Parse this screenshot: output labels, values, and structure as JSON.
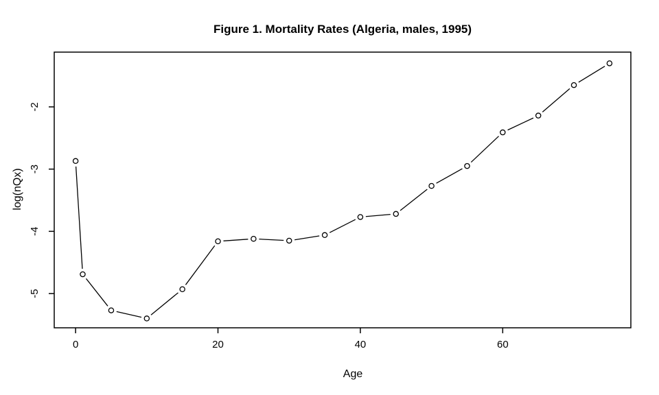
{
  "figure": {
    "background": "#ffffff",
    "foreground": "#000000"
  },
  "chart_data": {
    "type": "line",
    "title": "Figure 1. Mortality Rates (Algeria, males, 1995)",
    "xlabel": "Age",
    "ylabel": "log(nQx)",
    "x": [
      0,
      1,
      5,
      10,
      15,
      20,
      25,
      30,
      35,
      40,
      45,
      50,
      55,
      60,
      65,
      70,
      75
    ],
    "y": [
      -2.87,
      -4.69,
      -5.27,
      -5.4,
      -4.93,
      -4.16,
      -4.12,
      -4.15,
      -4.06,
      -3.77,
      -3.72,
      -3.27,
      -2.95,
      -2.41,
      -2.14,
      -1.65,
      -1.3
    ],
    "xlim": [
      -3,
      78
    ],
    "ylim": [
      -5.55,
      -1.12
    ],
    "xticks": [
      "0",
      "20",
      "40",
      "60"
    ],
    "xtick_values": [
      0,
      20,
      40,
      60
    ],
    "yticks": [
      "-2",
      "-3",
      "-4",
      "-5"
    ],
    "ytick_values": [
      -2,
      -3,
      -4,
      -5
    ],
    "marker": "open-circle",
    "line_color": "#000000",
    "marker_color": "#000000",
    "grid": false,
    "legend": null
  }
}
